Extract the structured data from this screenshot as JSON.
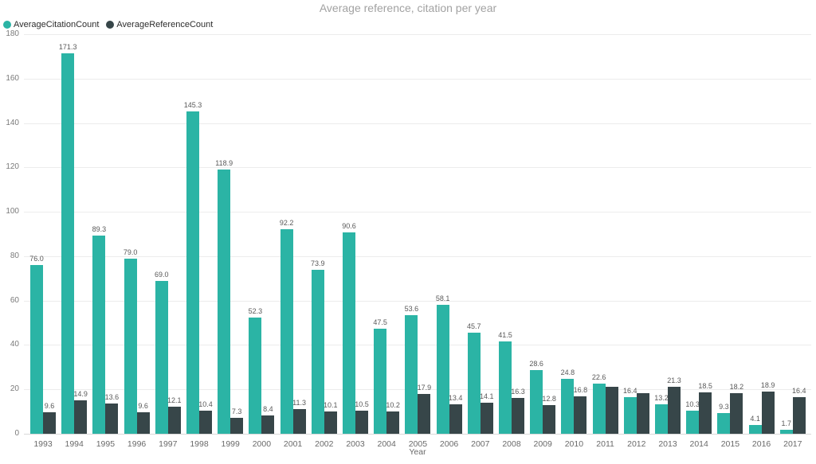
{
  "header": {
    "title": "Average reference, citation per year"
  },
  "legend": {
    "items": [
      {
        "name": "AverageCitationCount",
        "color": "#2bb4a5"
      },
      {
        "name": "AverageReferenceCount",
        "color": "#374649"
      }
    ]
  },
  "chart_data": {
    "type": "bar",
    "title": "Average reference, citation per year",
    "xlabel": "Year",
    "ylabel": "",
    "ylim": [
      0,
      180
    ],
    "yticks": [
      0,
      20,
      40,
      60,
      80,
      100,
      120,
      140,
      160,
      180
    ],
    "grid": true,
    "legend_position": "top-left",
    "categories": [
      "1993",
      "1994",
      "1995",
      "1996",
      "1997",
      "1998",
      "1999",
      "2000",
      "2001",
      "2002",
      "2003",
      "2004",
      "2005",
      "2006",
      "2007",
      "2008",
      "2009",
      "2010",
      "2011",
      "2012",
      "2013",
      "2014",
      "2015",
      "2016",
      "2017"
    ],
    "series": [
      {
        "name": "AverageCitationCount",
        "color": "#2bb4a5",
        "values": [
          76.0,
          171.3,
          89.3,
          79.0,
          69.0,
          145.3,
          118.9,
          52.3,
          92.2,
          73.9,
          90.6,
          47.5,
          53.6,
          58.1,
          45.7,
          41.5,
          28.6,
          24.8,
          22.6,
          16.4,
          13.2,
          10.3,
          9.3,
          4.1,
          1.7
        ],
        "labels": [
          "76.0",
          "171.3",
          "89.3",
          "79.0",
          "69.0",
          "145.3",
          "118.9",
          "52.3",
          "92.2",
          "73.9",
          "90.6",
          "47.5",
          "53.6",
          "58.1",
          "45.7",
          "41.5",
          "28.6",
          "24.8",
          "22.6",
          "16.4",
          "13.2",
          "10.3",
          "9.3",
          "4.1",
          "1.7"
        ]
      },
      {
        "name": "AverageReferenceCount",
        "color": "#374649",
        "values": [
          9.6,
          14.9,
          13.6,
          9.6,
          12.1,
          10.4,
          7.3,
          8.4,
          11.3,
          10.1,
          10.5,
          10.2,
          17.9,
          13.4,
          14.1,
          16.3,
          12.8,
          16.8,
          21.0,
          18.3,
          21.3,
          18.5,
          18.2,
          18.9,
          16.4
        ],
        "labels": [
          "9.6",
          "14.9",
          "13.6",
          "9.6",
          "12.1",
          "10.4",
          "7.3",
          "8.4",
          "11.3",
          "10.1",
          "10.5",
          "10.2",
          "17.9",
          "13.4",
          "14.1",
          "16.3",
          "12.8",
          "16.8",
          "",
          "",
          "21.3",
          "18.5",
          "18.2",
          "18.9",
          "16.4"
        ]
      }
    ]
  }
}
